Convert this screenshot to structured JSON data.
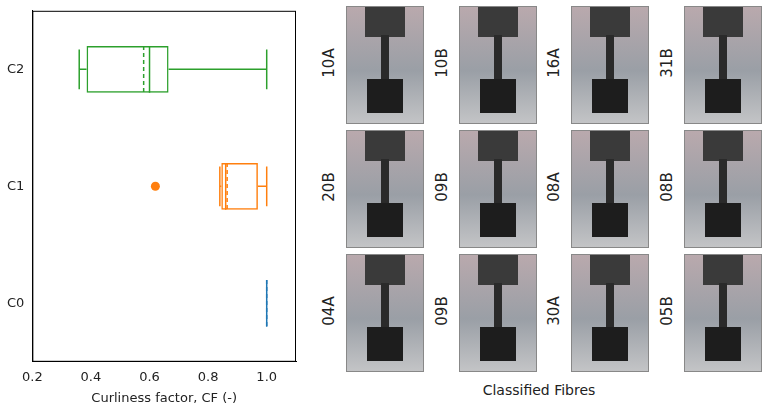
{
  "chart_data": {
    "type": "boxplot",
    "orientation": "horizontal",
    "categories": [
      "C2",
      "C1",
      "C0"
    ],
    "boxes": [
      {
        "min": 0.36,
        "q1": 0.385,
        "median": 0.6,
        "mean": 0.58,
        "q3": 0.665,
        "max": 1.0,
        "outliers": [],
        "color": "#2ca02c"
      },
      {
        "min": 0.84,
        "q1": 0.845,
        "median": 0.86,
        "mean": 0.865,
        "q3": 0.97,
        "max": 1.0,
        "outliers": [
          0.62
        ],
        "color": "#ff7f0e"
      },
      {
        "min": 1.0,
        "q1": 1.0,
        "median": 1.0,
        "mean": 1.0,
        "q3": 1.0,
        "max": 1.0,
        "outliers": [],
        "color": "#1f77b4"
      }
    ],
    "x_label": "Curliness factor, CF (-)",
    "xlim": [
      0.2,
      1.1
    ],
    "xticks": [
      0.2,
      0.4,
      0.6,
      0.8,
      {
        "value": 1.0,
        "label": "1.0"
      }
    ],
    "grid": false
  },
  "image_grid": {
    "title": "Classified Fibres",
    "labels": [
      "10A",
      "10B",
      "16A",
      "31B",
      "20B",
      "09B",
      "08A",
      "08B",
      "04A",
      "09B",
      "30A",
      "05B"
    ]
  }
}
